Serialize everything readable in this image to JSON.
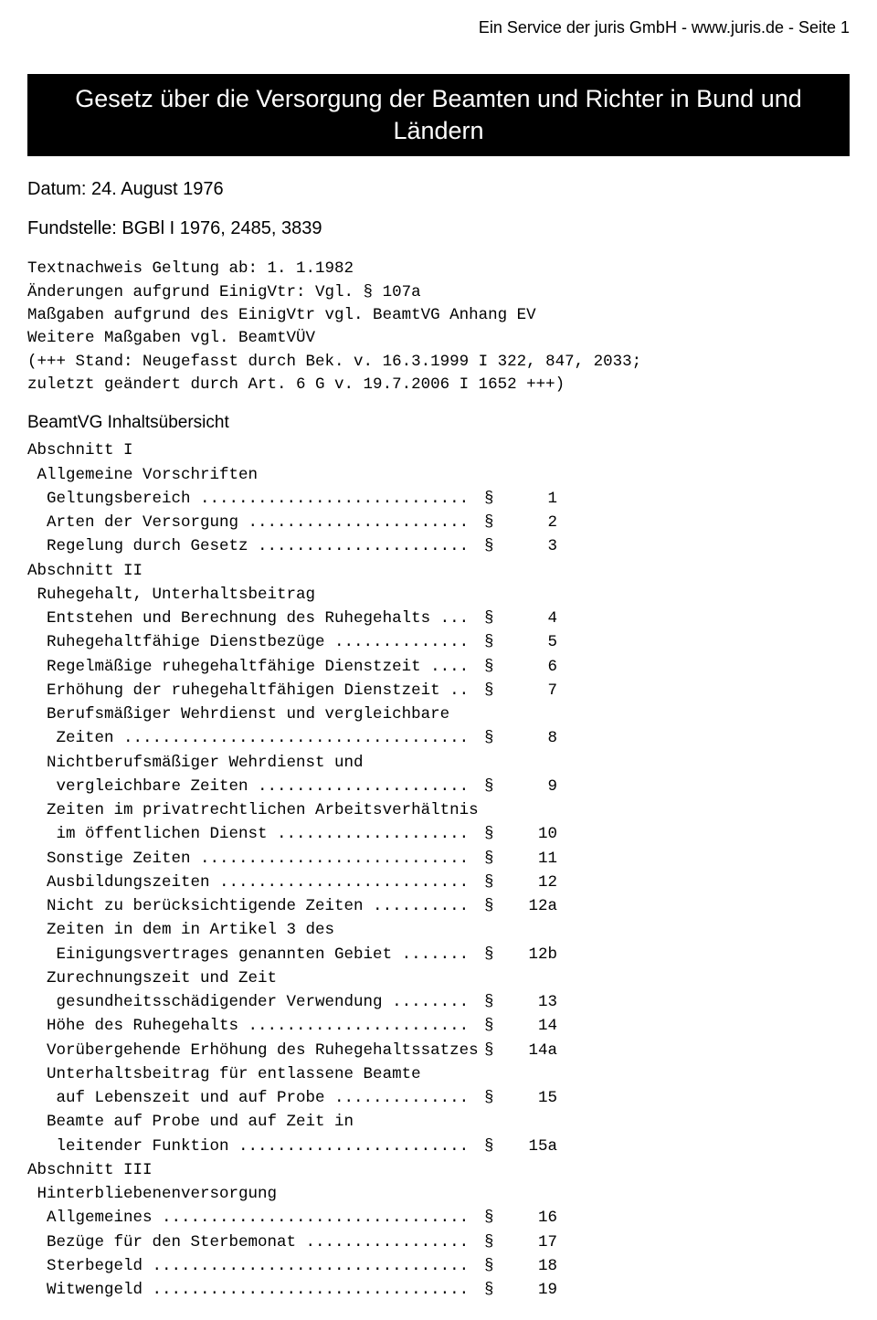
{
  "header": {
    "service_text": "Ein Service der juris GmbH - www.juris.de - Seite 1"
  },
  "title": "Gesetz über die Versorgung der Beamten und Richter in Bund und Ländern",
  "date_line": "Datum: 24. August 1976",
  "fundstelle": "Fundstelle: BGBl I 1976, 2485, 3839",
  "preamble": "Textnachweis Geltung ab: 1. 1.1982\nÄnderungen aufgrund EinigVtr: Vgl. § 107a\nMaßgaben aufgrund des EinigVtr vgl. BeamtVG Anhang EV\nWeitere Maßgaben vgl. BeamtVÜV\n(+++ Stand: Neugefasst durch Bek. v. 16.3.1999 I 322, 847, 2033;\nzuletzt geändert durch Art. 6 G v. 19.7.2006 I 1652 +++)",
  "toc_heading_sans": "BeamtVG Inhaltsübersicht",
  "sections": [
    {
      "heading": "Abschnitt I\n Allgemeine Vorschriften",
      "items": [
        {
          "label": "  Geltungsbereich ............................",
          "num": "1"
        },
        {
          "label": "  Arten der Versorgung .......................",
          "num": "2"
        },
        {
          "label": "  Regelung durch Gesetz ......................",
          "num": "3"
        }
      ]
    },
    {
      "heading": "Abschnitt II\n Ruhegehalt, Unterhaltsbeitrag",
      "items": [
        {
          "label": "  Entstehen und Berechnung des Ruhegehalts ...",
          "num": "4"
        },
        {
          "label": "  Ruhegehaltfähige Dienstbezüge ..............",
          "num": "5"
        },
        {
          "label": "  Regelmäßige ruhegehaltfähige Dienstzeit ....",
          "num": "6"
        },
        {
          "label": "  Erhöhung der ruhegehaltfähigen Dienstzeit ..",
          "num": "7"
        },
        {
          "label": "  Berufsmäßiger Wehrdienst und vergleichbare",
          "num": ""
        },
        {
          "label": "   Zeiten ....................................",
          "num": "8"
        },
        {
          "label": "  Nichtberufsmäßiger Wehrdienst und",
          "num": ""
        },
        {
          "label": "   vergleichbare Zeiten ......................",
          "num": "9"
        },
        {
          "label": "  Zeiten im privatrechtlichen Arbeitsverhältnis",
          "num": ""
        },
        {
          "label": "   im öffentlichen Dienst ....................",
          "num": "10"
        },
        {
          "label": "  Sonstige Zeiten ............................",
          "num": "11"
        },
        {
          "label": "  Ausbildungszeiten ..........................",
          "num": "12"
        },
        {
          "label": "  Nicht zu berücksichtigende Zeiten ..........",
          "num": "12a"
        },
        {
          "label": "  Zeiten in dem in Artikel 3 des",
          "num": ""
        },
        {
          "label": "   Einigungsvertrages genannten Gebiet .......",
          "num": "12b"
        },
        {
          "label": "  Zurechnungszeit und Zeit",
          "num": ""
        },
        {
          "label": "   gesundheitsschädigender Verwendung ........",
          "num": "13"
        },
        {
          "label": "  Höhe des Ruhegehalts .......................",
          "num": "14"
        },
        {
          "label": "  Vorübergehende Erhöhung des Ruhegehaltssatzes",
          "num": "14a"
        },
        {
          "label": "  Unterhaltsbeitrag für entlassene Beamte",
          "num": ""
        },
        {
          "label": "   auf Lebenszeit und auf Probe ..............",
          "num": "15"
        },
        {
          "label": "  Beamte auf Probe und auf Zeit in",
          "num": ""
        },
        {
          "label": "   leitender Funktion ........................",
          "num": "15a"
        }
      ]
    },
    {
      "heading": "Abschnitt III\n Hinterbliebenenversorgung",
      "items": [
        {
          "label": "  Allgemeines ................................",
          "num": "16"
        },
        {
          "label": "  Bezüge für den Sterbemonat .................",
          "num": "17"
        },
        {
          "label": "  Sterbegeld .................................",
          "num": "18"
        },
        {
          "label": "  Witwengeld .................................",
          "num": "19"
        }
      ]
    }
  ],
  "symbol": "§"
}
